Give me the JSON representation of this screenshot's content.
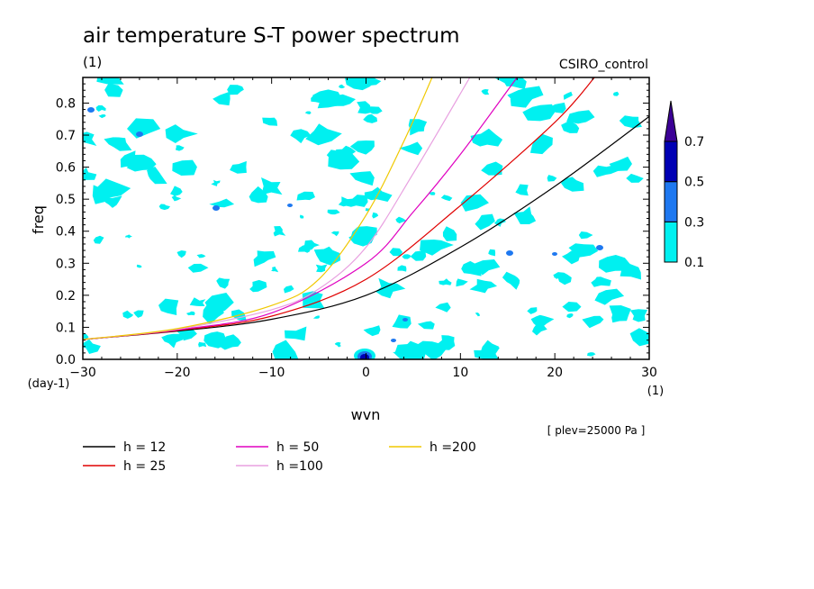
{
  "chart_data": {
    "type": "line",
    "title": "air temperature S-T power spectrum",
    "units": "(1)",
    "dataset": "CSIRO_control",
    "xlabel": "wvn",
    "x_unit": "(1)",
    "ylabel": "freq",
    "y_unit": "(day-1)",
    "xlim": [
      -30,
      30
    ],
    "ylim": [
      0,
      0.88
    ],
    "x_ticks": [
      -30,
      -20,
      -10,
      0,
      10,
      20,
      30
    ],
    "x_tick_labels": [
      "−30",
      "−20",
      "−10",
      "0",
      "10",
      "20",
      "30"
    ],
    "y_ticks": [
      0,
      0.1,
      0.2,
      0.3,
      0.4,
      0.5,
      0.6,
      0.7,
      0.8
    ],
    "y_tick_labels": [
      "0.0",
      "0.1",
      "0.2",
      "0.3",
      "0.4",
      "0.5",
      "0.6",
      "0.7",
      "0.8"
    ],
    "annotation": "[ plev=25000 Pa ]",
    "colorbar": {
      "levels": [
        0.1,
        0.3,
        0.5,
        0.7
      ],
      "level_labels": [
        "0.1",
        "0.3",
        "0.5",
        "0.7"
      ],
      "colors": [
        "#00f0f0",
        "#1e78f0",
        "#0000b4",
        "#3c0096"
      ]
    },
    "series": [
      {
        "name": "h = 12",
        "color": "#000000",
        "x": [
          -30,
          -20,
          -10,
          0,
          10,
          20,
          30
        ],
        "y": [
          0.062,
          0.088,
          0.125,
          0.2,
          0.35,
          0.54,
          0.758
        ]
      },
      {
        "name": "h = 25",
        "color": "#e00000",
        "x": [
          -30,
          -20,
          -10,
          0,
          10,
          20,
          24.2
        ],
        "y": [
          0.062,
          0.09,
          0.135,
          0.25,
          0.48,
          0.74,
          0.88
        ]
      },
      {
        "name": "h = 50",
        "color": "#e000c0",
        "x": [
          -30,
          -20,
          -10,
          0,
          5,
          10,
          16
        ],
        "y": [
          0.062,
          0.092,
          0.145,
          0.3,
          0.46,
          0.64,
          0.88
        ]
      },
      {
        "name": "h =100",
        "color": "#e8a0e0",
        "x": [
          -30,
          -20,
          -10,
          -5,
          0,
          5,
          11
        ],
        "y": [
          0.062,
          0.094,
          0.155,
          0.22,
          0.35,
          0.58,
          0.88
        ]
      },
      {
        "name": "h =200",
        "color": "#f0c800",
        "x": [
          -30,
          -20,
          -10,
          -5,
          0,
          4,
          7
        ],
        "y": [
          0.062,
          0.096,
          0.168,
          0.25,
          0.45,
          0.68,
          0.88
        ]
      }
    ],
    "legend_placement": "bottom-left",
    "grid": false
  }
}
